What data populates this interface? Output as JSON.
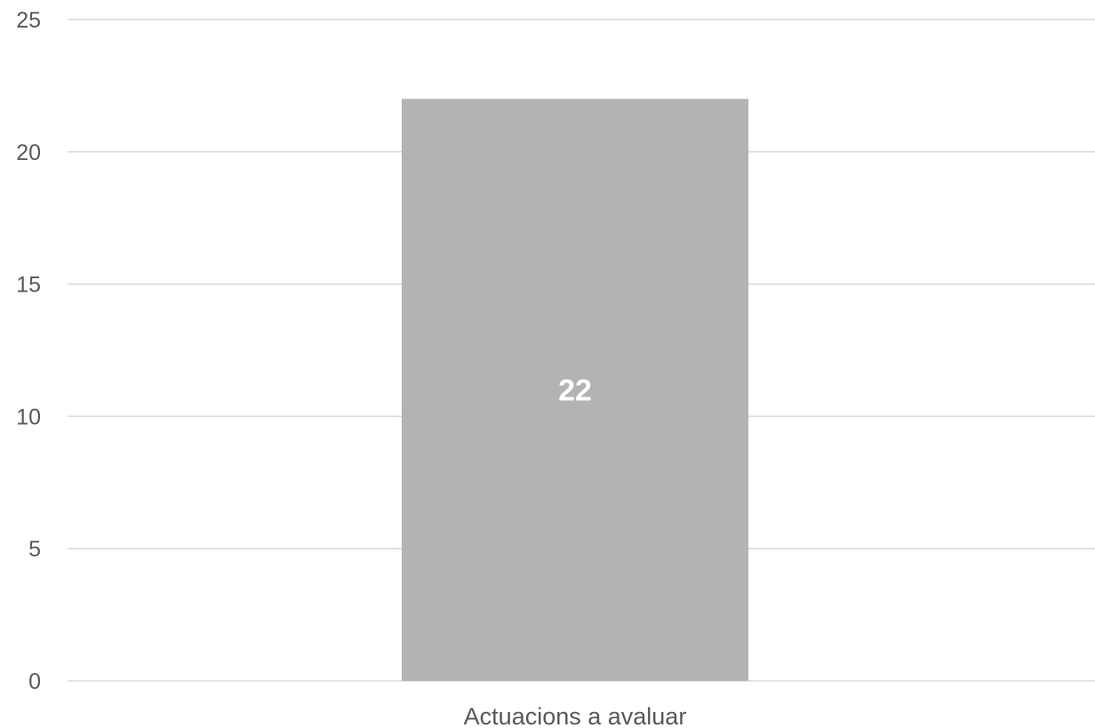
{
  "chart_data": {
    "type": "bar",
    "categories": [
      "Actuacions a avaluar"
    ],
    "series": [
      {
        "values": [
          22
        ]
      }
    ],
    "data_labels": [
      "22"
    ],
    "ylim": [
      0,
      25
    ],
    "yticks": [
      0,
      5,
      10,
      15,
      20,
      25
    ],
    "ytick_labels": [
      "0",
      "5",
      "10",
      "15",
      "20",
      "25"
    ],
    "title": "",
    "xlabel": "",
    "ylabel": "",
    "grid": true,
    "legend": "none",
    "colors": {
      "bar": "#b3b3b3",
      "gridline": "#d9d9d9",
      "text": "#595959",
      "data_label": "#ffffff"
    }
  }
}
